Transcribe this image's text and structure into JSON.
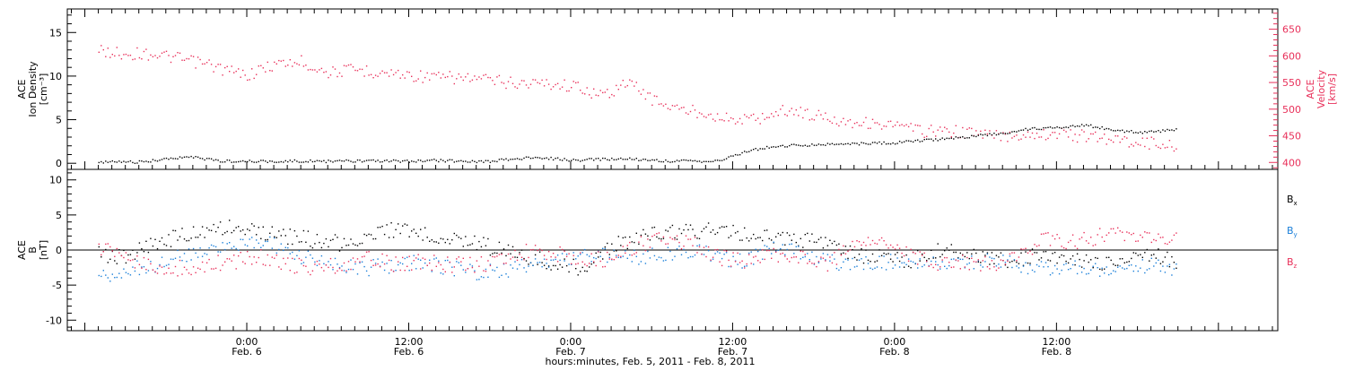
{
  "colors": {
    "black": "#000000",
    "pink": "#e8305a",
    "blue": "#1a7fd9",
    "background": "#ffffff"
  },
  "chart_data": [
    {
      "type": "scatter",
      "panel": "top",
      "ylabel_left_lines": [
        "ACE",
        "Ion Density",
        "[cm⁻³]"
      ],
      "ylabel_right_lines": [
        "ACE",
        "Velocity",
        "[km/s]"
      ],
      "ylim_left": [
        -0.7,
        17.7
      ],
      "ylim_right": [
        387,
        688
      ],
      "yticks_left": [
        0,
        5,
        10,
        15
      ],
      "yticks_right": [
        400,
        450,
        500,
        550,
        600,
        650
      ],
      "series": [
        {
          "axis": "left",
          "color": "#000000",
          "points": [
            [
              -11,
              0.2
            ],
            [
              -8,
              0.2
            ],
            [
              -6,
              0.5
            ],
            [
              -4,
              0.8
            ],
            [
              -2,
              0.3
            ],
            [
              0,
              0.3
            ],
            [
              3,
              0.3
            ],
            [
              6,
              0.3
            ],
            [
              9,
              0.3
            ],
            [
              12,
              0.3
            ],
            [
              14,
              0.4
            ],
            [
              16,
              0.3
            ],
            [
              18,
              0.3
            ],
            [
              20,
              0.6
            ],
            [
              22,
              0.7
            ],
            [
              24,
              0.4
            ],
            [
              26,
              0.5
            ],
            [
              28,
              0.6
            ],
            [
              30,
              0.4
            ],
            [
              32,
              0.3
            ],
            [
              34,
              0.3
            ],
            [
              35,
              0.3
            ],
            [
              36,
              1.0
            ],
            [
              37.5,
              1.6
            ],
            [
              39,
              2.0
            ],
            [
              42,
              2.2
            ],
            [
              45,
              2.3
            ],
            [
              48,
              2.4
            ],
            [
              51,
              2.8
            ],
            [
              54,
              3.2
            ],
            [
              56,
              3.5
            ],
            [
              58,
              4.0
            ],
            [
              61,
              4.3
            ],
            [
              62,
              4.5
            ],
            [
              64,
              3.9
            ],
            [
              66,
              3.6
            ],
            [
              68,
              3.8
            ],
            [
              69,
              3.9
            ]
          ]
        },
        {
          "axis": "right",
          "color": "#e8305a",
          "points": [
            [
              -11,
              610
            ],
            [
              -9,
              605
            ],
            [
              -7,
              605
            ],
            [
              -5,
              595
            ],
            [
              -3,
              585
            ],
            [
              -1,
              570
            ],
            [
              0,
              565
            ],
            [
              2,
              585
            ],
            [
              4,
              590
            ],
            [
              6,
              570
            ],
            [
              8,
              575
            ],
            [
              10,
              570
            ],
            [
              12,
              565
            ],
            [
              14,
              560
            ],
            [
              16,
              560
            ],
            [
              18,
              555
            ],
            [
              20,
              550
            ],
            [
              22,
              550
            ],
            [
              24,
              545
            ],
            [
              25,
              540
            ],
            [
              26,
              525
            ],
            [
              27,
              535
            ],
            [
              28,
              550
            ],
            [
              29,
              540
            ],
            [
              30,
              520
            ],
            [
              31,
              510
            ],
            [
              32,
              500
            ],
            [
              34,
              495
            ],
            [
              36,
              480
            ],
            [
              38,
              485
            ],
            [
              40,
              500
            ],
            [
              42,
              490
            ],
            [
              44,
              480
            ],
            [
              46,
              475
            ],
            [
              48,
              470
            ],
            [
              50,
              460
            ],
            [
              52,
              460
            ],
            [
              54,
              455
            ],
            [
              56,
              450
            ],
            [
              58,
              455
            ],
            [
              60,
              455
            ],
            [
              62,
              450
            ],
            [
              64,
              445
            ],
            [
              66,
              440
            ],
            [
              68,
              435
            ],
            [
              69,
              430
            ]
          ]
        }
      ]
    },
    {
      "type": "scatter",
      "panel": "bottom",
      "ylabel_left_lines": [
        "ACE",
        "B",
        "[nT]"
      ],
      "ylim": [
        -11.5,
        11.5
      ],
      "yticks": [
        -10,
        -5,
        0,
        5,
        10
      ],
      "zero_line": true,
      "series": [
        {
          "label": "B",
          "subscript": "x",
          "color": "#000000",
          "points": [
            [
              -11,
              -0.5
            ],
            [
              -9,
              -1
            ],
            [
              -7,
              1
            ],
            [
              -5,
              2
            ],
            [
              -3,
              3
            ],
            [
              -1,
              3.5
            ],
            [
              1,
              2.5
            ],
            [
              3,
              2
            ],
            [
              5,
              1.5
            ],
            [
              7,
              1
            ],
            [
              9,
              2
            ],
            [
              11,
              3
            ],
            [
              13,
              2.5
            ],
            [
              15,
              2
            ],
            [
              17,
              1
            ],
            [
              19,
              0
            ],
            [
              21,
              -1
            ],
            [
              23,
              -2
            ],
            [
              25,
              -2.5
            ],
            [
              27,
              0.5
            ],
            [
              29,
              2
            ],
            [
              31,
              2.5
            ],
            [
              33,
              2.8
            ],
            [
              35,
              3
            ],
            [
              37,
              2.5
            ],
            [
              39,
              2
            ],
            [
              41,
              1.5
            ],
            [
              43,
              1
            ],
            [
              45,
              -0.5
            ],
            [
              47,
              -1
            ],
            [
              49,
              -1.5
            ],
            [
              51,
              0
            ],
            [
              53,
              -0.5
            ],
            [
              55,
              -1
            ],
            [
              57,
              -1.5
            ],
            [
              59,
              -0.5
            ],
            [
              61,
              -1
            ],
            [
              63,
              -2
            ],
            [
              65,
              -1
            ],
            [
              67,
              -0.5
            ],
            [
              69,
              -1.5
            ]
          ]
        },
        {
          "label": "B",
          "subscript": "y",
          "color": "#1a7fd9",
          "points": [
            [
              -11,
              -4
            ],
            [
              -9,
              -3
            ],
            [
              -7,
              -2
            ],
            [
              -5,
              -1
            ],
            [
              -3,
              0
            ],
            [
              -1,
              1
            ],
            [
              1,
              1.5
            ],
            [
              3,
              0
            ],
            [
              5,
              -1.5
            ],
            [
              7,
              -2
            ],
            [
              9,
              -2.5
            ],
            [
              11,
              -2
            ],
            [
              13,
              -1.5
            ],
            [
              15,
              -2.5
            ],
            [
              17,
              -3
            ],
            [
              19,
              -3
            ],
            [
              21,
              -2
            ],
            [
              23,
              -1.5
            ],
            [
              25,
              -0.5
            ],
            [
              27,
              -0.5
            ],
            [
              29,
              -1
            ],
            [
              31,
              -0.5
            ],
            [
              33,
              0
            ],
            [
              35,
              -1
            ],
            [
              37,
              -1.5
            ],
            [
              39,
              0.5
            ],
            [
              41,
              -0.5
            ],
            [
              43,
              -1.5
            ],
            [
              45,
              -2
            ],
            [
              47,
              -1.5
            ],
            [
              49,
              -2
            ],
            [
              51,
              -2
            ],
            [
              53,
              -1.5
            ],
            [
              55,
              -1.5
            ],
            [
              57,
              -2
            ],
            [
              59,
              -2.5
            ],
            [
              61,
              -2.5
            ],
            [
              63,
              -3
            ],
            [
              65,
              -3
            ],
            [
              67,
              -2
            ],
            [
              69,
              -2.5
            ]
          ]
        },
        {
          "label": "B",
          "subscript": "z",
          "color": "#e8305a",
          "points": [
            [
              -11,
              0.5
            ],
            [
              -9,
              -1
            ],
            [
              -7,
              -2
            ],
            [
              -5,
              -2.5
            ],
            [
              -3,
              -2
            ],
            [
              -1,
              -1.5
            ],
            [
              1,
              -1
            ],
            [
              3,
              -2
            ],
            [
              5,
              -2.5
            ],
            [
              7,
              -2
            ],
            [
              9,
              -1
            ],
            [
              11,
              -2
            ],
            [
              13,
              -1.5
            ],
            [
              15,
              -2
            ],
            [
              17,
              -2
            ],
            [
              19,
              -1.5
            ],
            [
              21,
              0
            ],
            [
              23,
              -0.5
            ],
            [
              25,
              -1.5
            ],
            [
              27,
              -1
            ],
            [
              29,
              1
            ],
            [
              31,
              1.5
            ],
            [
              33,
              1
            ],
            [
              35,
              -1
            ],
            [
              37,
              -1.5
            ],
            [
              39,
              -0.5
            ],
            [
              41,
              -1
            ],
            [
              43,
              -2
            ],
            [
              45,
              1
            ],
            [
              47,
              1.5
            ],
            [
              49,
              -0.5
            ],
            [
              51,
              -2
            ],
            [
              53,
              -1.5
            ],
            [
              55,
              -2
            ],
            [
              57,
              -1
            ],
            [
              59,
              1.5
            ],
            [
              61,
              1
            ],
            [
              63,
              2
            ],
            [
              65,
              2.5
            ],
            [
              67,
              2
            ],
            [
              69,
              1.5
            ]
          ]
        }
      ]
    }
  ],
  "x_axis": {
    "xlim": [
      -13.3,
      76.4
    ],
    "ticks": [
      {
        "x": 0,
        "time": "0:00",
        "date": "Feb. 6"
      },
      {
        "x": 12,
        "time": "12:00",
        "date": "Feb. 6"
      },
      {
        "x": 24,
        "time": "0:00",
        "date": "Feb. 7"
      },
      {
        "x": 36,
        "time": "12:00",
        "date": "Feb. 7"
      },
      {
        "x": 48,
        "time": "0:00",
        "date": "Feb. 8"
      },
      {
        "x": 60,
        "time": "12:00",
        "date": "Feb. 8"
      }
    ],
    "minor_step": 1,
    "title": "hours:minutes, Feb.  5, 2011 - Feb.  8, 2011"
  }
}
